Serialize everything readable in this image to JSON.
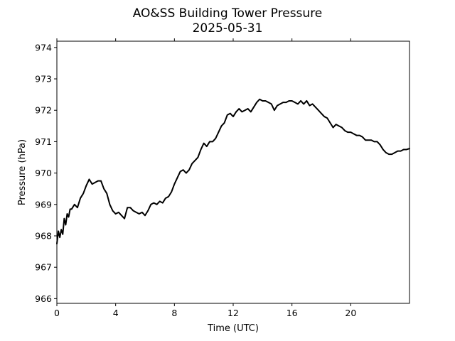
{
  "chart_data": {
    "type": "line",
    "title": "AO&SS Building Tower Pressure",
    "subtitle": "2025-05-31",
    "xlabel": "Time (UTC)",
    "ylabel": "Pressure (hPa)",
    "xlim": [
      0,
      24
    ],
    "ylim": [
      965.85,
      974.2
    ],
    "xticks": [
      0,
      4,
      8,
      12,
      16,
      20
    ],
    "yticks": [
      966,
      967,
      968,
      969,
      970,
      971,
      972,
      973,
      974
    ],
    "grid": false,
    "line_color": "#000000",
    "series": [
      {
        "x": [
          0.0,
          0.1,
          0.2,
          0.3,
          0.4,
          0.5,
          0.6,
          0.7,
          0.8,
          0.9,
          1.0,
          1.2,
          1.4,
          1.6,
          1.8,
          2.0,
          2.2,
          2.4,
          2.6,
          2.8,
          3.0,
          3.2,
          3.4,
          3.6,
          3.8,
          4.0,
          4.2,
          4.4,
          4.6,
          4.8,
          5.0,
          5.2,
          5.4,
          5.6,
          5.8,
          6.0,
          6.2,
          6.4,
          6.6,
          6.8,
          7.0,
          7.2,
          7.4,
          7.6,
          7.8,
          8.0,
          8.2,
          8.4,
          8.6,
          8.8,
          9.0,
          9.2,
          9.4,
          9.6,
          9.8,
          10.0,
          10.2,
          10.4,
          10.6,
          10.8,
          11.0,
          11.2,
          11.4,
          11.6,
          11.8,
          12.0,
          12.2,
          12.4,
          12.6,
          12.8,
          13.0,
          13.2,
          13.4,
          13.6,
          13.8,
          14.0,
          14.2,
          14.4,
          14.6,
          14.8,
          15.0,
          15.2,
          15.4,
          15.6,
          15.8,
          16.0,
          16.2,
          16.4,
          16.6,
          16.8,
          17.0,
          17.2,
          17.4,
          17.6,
          17.8,
          18.0,
          18.2,
          18.4,
          18.6,
          18.8,
          19.0,
          19.2,
          19.4,
          19.6,
          19.8,
          20.0,
          20.2,
          20.4,
          20.6,
          20.8,
          21.0,
          21.2,
          21.4,
          21.6,
          21.8,
          22.0,
          22.2,
          22.4,
          22.6,
          22.8,
          23.0,
          23.2,
          23.4,
          23.6,
          23.8,
          24.0
        ],
        "values": [
          967.75,
          968.15,
          967.95,
          968.2,
          968.05,
          968.55,
          968.35,
          968.7,
          968.6,
          968.85,
          968.85,
          969.0,
          968.9,
          969.2,
          969.35,
          969.6,
          969.8,
          969.65,
          969.7,
          969.75,
          969.75,
          969.5,
          969.35,
          969.0,
          968.8,
          968.7,
          968.75,
          968.65,
          968.55,
          968.9,
          968.9,
          968.8,
          968.75,
          968.7,
          968.75,
          968.65,
          968.8,
          969.0,
          969.05,
          969.0,
          969.1,
          969.05,
          969.2,
          969.25,
          969.4,
          969.65,
          969.85,
          970.05,
          970.1,
          970.0,
          970.1,
          970.3,
          970.4,
          970.5,
          970.75,
          970.95,
          970.85,
          971.0,
          971.0,
          971.1,
          971.3,
          971.5,
          971.6,
          971.85,
          971.9,
          971.8,
          971.95,
          972.05,
          971.95,
          972.0,
          972.05,
          971.95,
          972.1,
          972.25,
          972.35,
          972.3,
          972.3,
          972.25,
          972.2,
          972.0,
          972.15,
          972.2,
          972.25,
          972.25,
          972.3,
          972.3,
          972.25,
          972.2,
          972.3,
          972.2,
          972.3,
          972.15,
          972.2,
          972.1,
          972.0,
          971.9,
          971.8,
          971.75,
          971.6,
          971.45,
          971.55,
          971.5,
          971.45,
          971.35,
          971.3,
          971.3,
          971.25,
          971.2,
          971.2,
          971.15,
          971.05,
          971.05,
          971.05,
          971.0,
          971.0,
          970.9,
          970.75,
          970.65,
          970.6,
          970.6,
          970.65,
          970.7,
          970.7,
          970.75,
          970.75,
          970.78
        ]
      }
    ]
  }
}
